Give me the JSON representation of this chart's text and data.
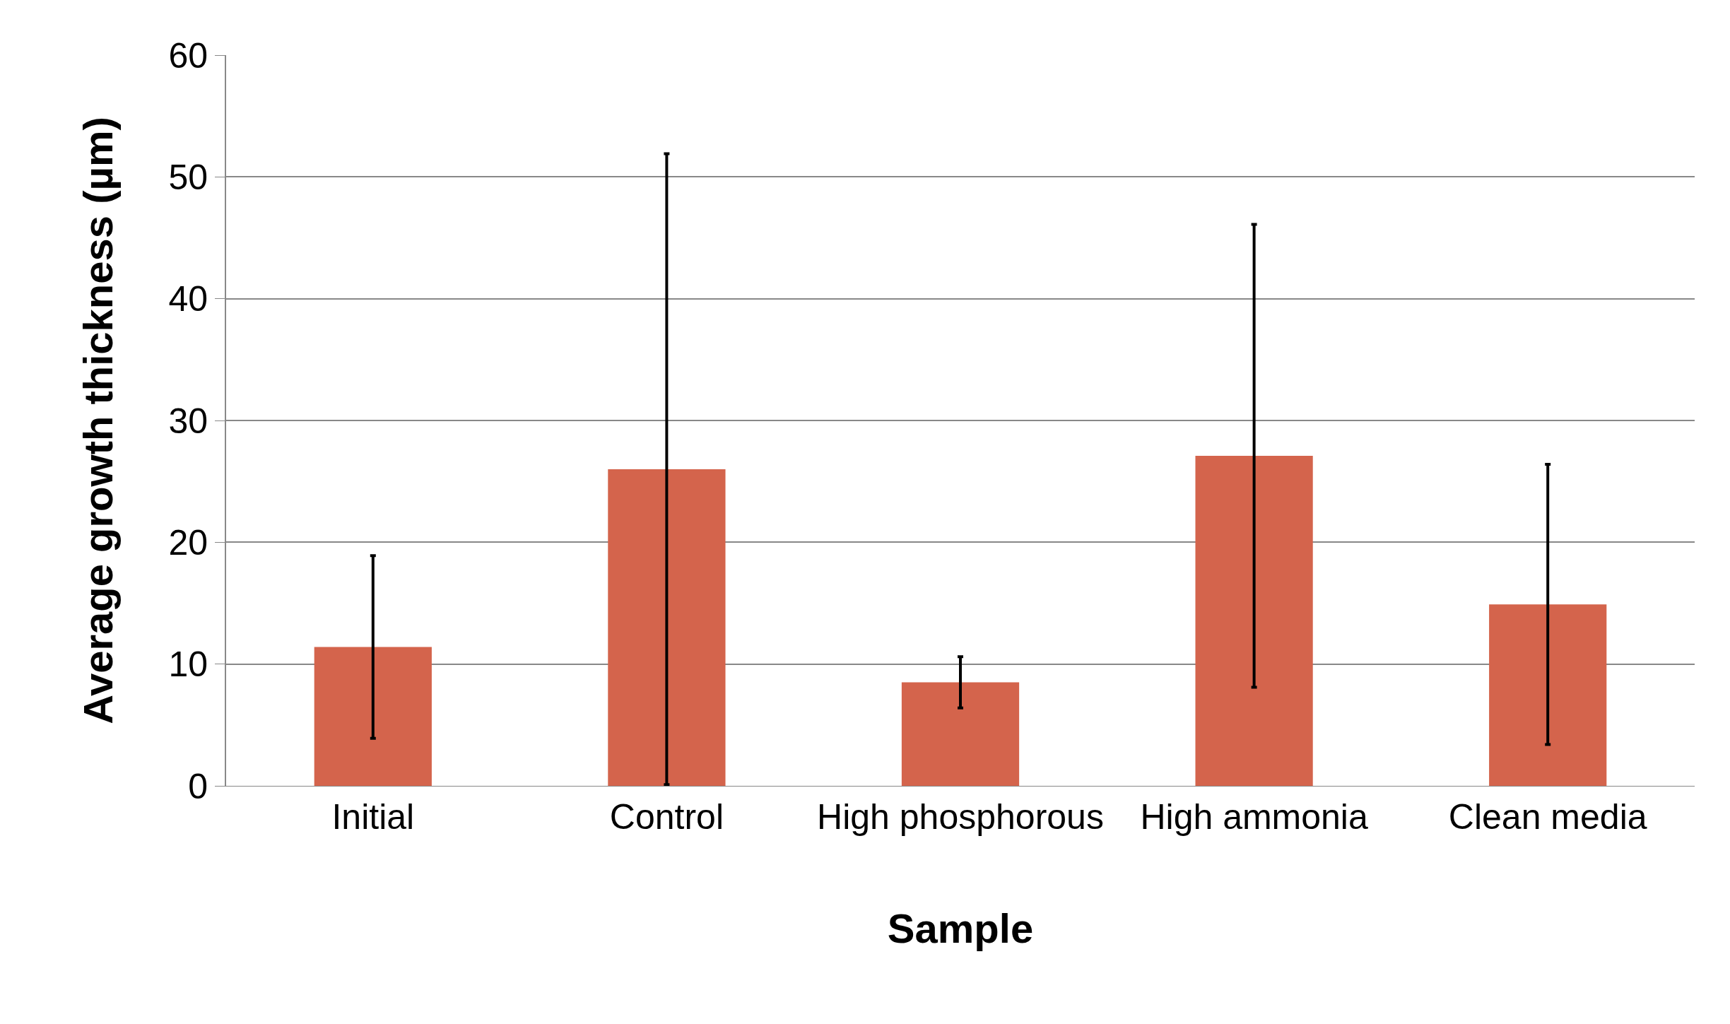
{
  "chart_data": {
    "type": "bar",
    "xlabel": "Sample",
    "ylabel": "Average growth thickness (µm)",
    "categories": [
      "Initial",
      "Control",
      "High phosphorous",
      "High ammonia",
      "Clean media"
    ],
    "values": [
      11.4,
      26.0,
      8.5,
      27.1,
      14.9
    ],
    "errors": [
      7.5,
      25.9,
      2.1,
      19.0,
      11.5
    ],
    "color": "#d4644c",
    "ylim": [
      0,
      60
    ],
    "yticks": [
      0,
      10,
      20,
      30,
      40,
      50,
      60
    ],
    "grid": "y"
  }
}
